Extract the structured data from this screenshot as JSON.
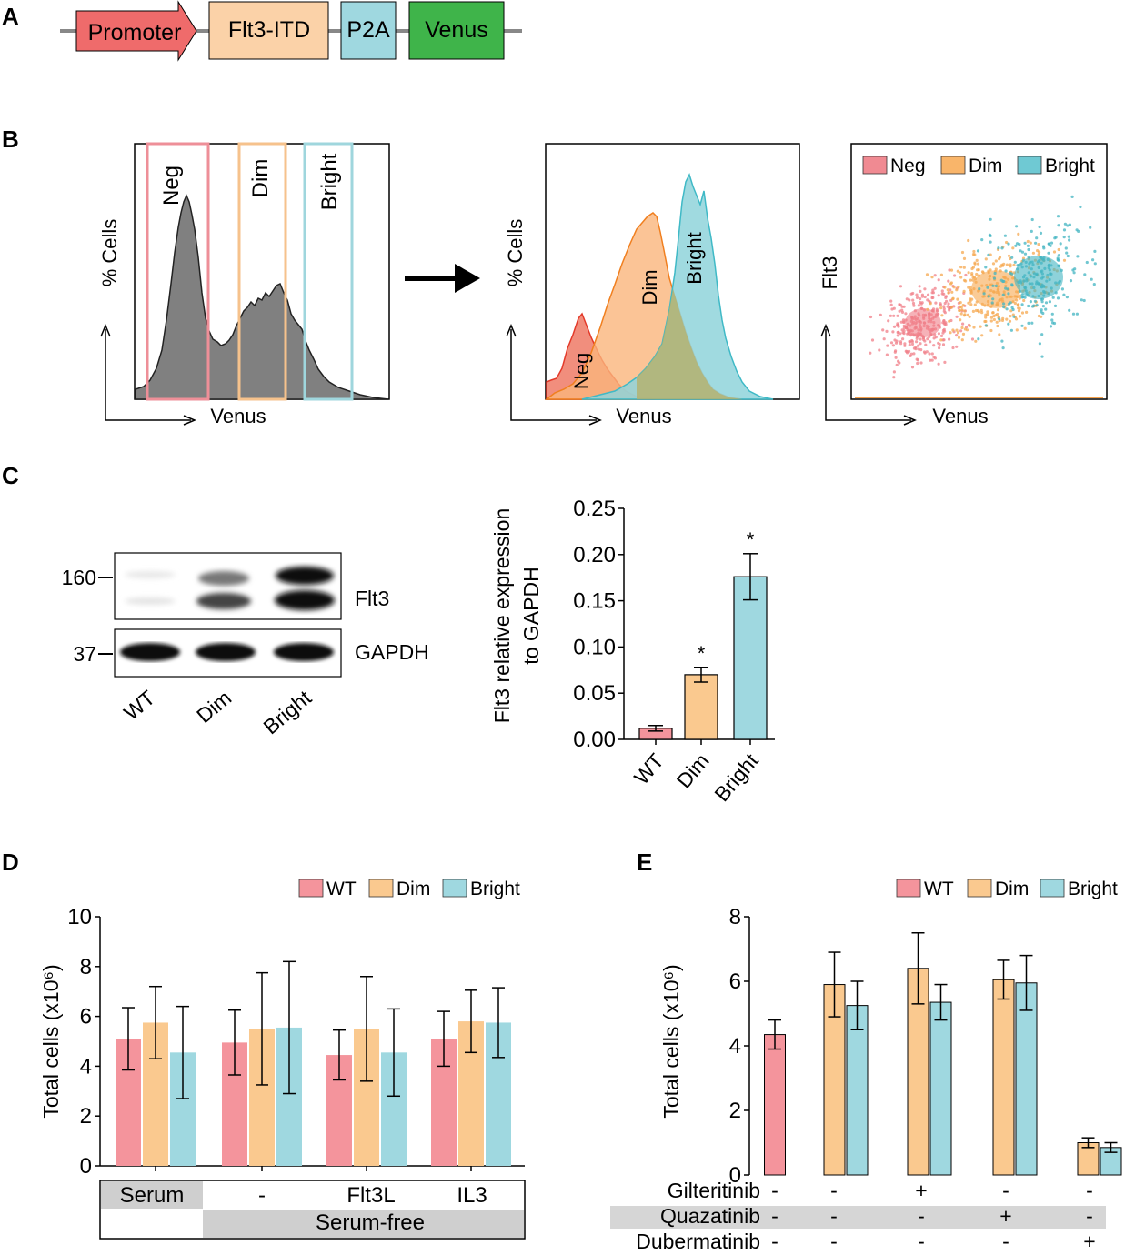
{
  "panels": {
    "a": {
      "label": "A",
      "construct": [
        "Promoter",
        "Flt3-ITD",
        "P2A",
        "Venus"
      ]
    },
    "b": {
      "label": "B",
      "gates": [
        "Neg",
        "Dim",
        "Bright"
      ],
      "hist_ylabel": "% Cells",
      "xlabel": "Venus",
      "overlay_labels": [
        "Neg",
        "Dim",
        "Bright"
      ],
      "scatter_ylabel": "Flt3",
      "legend": [
        "Neg",
        "Dim",
        "Bright"
      ]
    },
    "c": {
      "label": "C",
      "blot": {
        "markers": [
          "160",
          "37"
        ],
        "bands": [
          "Flt3",
          "GAPDH"
        ],
        "lanes": [
          "WT",
          "Dim",
          "Bright"
        ]
      }
    },
    "d": {
      "label": "D",
      "legend": [
        "WT",
        "Dim",
        "Bright"
      ],
      "conditions": [
        "Serum",
        "-",
        "Flt3L",
        "IL3"
      ],
      "serum_free": "Serum-free"
    },
    "e": {
      "label": "E",
      "legend": [
        "WT",
        "Dim",
        "Bright"
      ],
      "rows": [
        {
          "name": "Gilteritinib",
          "signs": [
            "-",
            "-",
            "+",
            "-",
            "-"
          ]
        },
        {
          "name": "Quazatinib",
          "signs": [
            "-",
            "-",
            "-",
            "+",
            "-"
          ]
        },
        {
          "name": "Dubermatinib",
          "signs": [
            "-",
            "-",
            "-",
            "-",
            "+"
          ]
        }
      ]
    }
  },
  "colors": {
    "wt": "#f4949c",
    "dim": "#fac98f",
    "bright": "#9fd8e0",
    "neg_gate": "#ee8f98",
    "dim_gate": "#f6c28c",
    "bright_gate": "#9fd6dd",
    "promoter": "#ef6b6b",
    "flt3itd": "#fbd2a8",
    "p2a": "#9fd8e0",
    "venus": "#3fb44a",
    "hist": "#808080"
  },
  "chart_data": [
    {
      "id": "c-bar",
      "type": "bar",
      "categories": [
        "WT",
        "Dim",
        "Bright"
      ],
      "values": [
        0.012,
        0.07,
        0.176
      ],
      "errors": [
        0.003,
        0.008,
        0.025
      ],
      "significance": [
        "",
        "*",
        "*"
      ],
      "ylabel": "Flt3 relative expression to GAPDH",
      "ylim": [
        0,
        0.25
      ],
      "yticks": [
        "0.00",
        "0.05",
        "0.10",
        "0.15",
        "0.20",
        "0.25"
      ]
    },
    {
      "id": "d-bar",
      "type": "bar",
      "categories": [
        "Serum",
        "-",
        "Flt3L",
        "IL3"
      ],
      "series": [
        {
          "name": "WT",
          "values": [
            5.1,
            4.95,
            4.45,
            5.1
          ],
          "errors": [
            1.25,
            1.3,
            1.0,
            1.1
          ]
        },
        {
          "name": "Dim",
          "values": [
            5.75,
            5.5,
            5.5,
            5.8
          ],
          "errors": [
            1.45,
            2.25,
            2.1,
            1.25
          ]
        },
        {
          "name": "Bright",
          "values": [
            4.55,
            5.55,
            4.55,
            5.75
          ],
          "errors": [
            1.85,
            2.65,
            1.75,
            1.4
          ]
        }
      ],
      "ylabel": "Total cells (x10⁶)",
      "ylim": [
        0,
        10
      ],
      "yticks": [
        "0",
        "2",
        "4",
        "6",
        "8",
        "10"
      ]
    },
    {
      "id": "e-bar",
      "type": "bar",
      "groups": 5,
      "series": [
        {
          "name": "WT",
          "values": [
            4.35,
            null,
            null,
            null,
            null
          ],
          "errors": [
            0.45,
            0,
            0,
            0,
            0
          ]
        },
        {
          "name": "Dim",
          "values": [
            null,
            5.9,
            6.4,
            6.05,
            1.0
          ],
          "errors": [
            0,
            1.0,
            1.1,
            0.6,
            0.15
          ]
        },
        {
          "name": "Bright",
          "values": [
            null,
            5.25,
            5.35,
            5.95,
            0.85
          ],
          "errors": [
            0,
            0.75,
            0.55,
            0.85,
            0.15
          ]
        }
      ],
      "ylabel": "Total cells (x10⁶)",
      "ylim": [
        0,
        8
      ],
      "yticks": [
        "0",
        "2",
        "4",
        "6",
        "8"
      ]
    }
  ]
}
